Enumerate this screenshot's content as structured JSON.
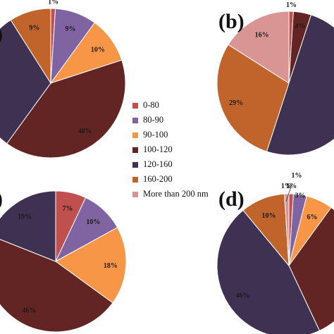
{
  "chart_data": [
    {
      "panel": "(a)",
      "type": "pie",
      "series": [
        {
          "name": "0-80",
          "value": 1,
          "label": "1%"
        },
        {
          "name": "80-90",
          "value": 9,
          "label": "9%"
        },
        {
          "name": "90-100",
          "value": 10,
          "label": "10%"
        },
        {
          "name": "100-120",
          "value": 40,
          "label": "40%"
        },
        {
          "name": "120-160",
          "value": 31,
          "label": "%"
        },
        {
          "name": "160-200",
          "value": 9,
          "label": "9%"
        }
      ]
    },
    {
      "panel": "(b)",
      "type": "pie",
      "series": [
        {
          "name": "0-80",
          "value": 1,
          "label": "1%"
        },
        {
          "name": "100-120",
          "value": 4,
          "label": "4%"
        },
        {
          "name": "120-160",
          "value": 50,
          "label": "5"
        },
        {
          "name": "160-200",
          "value": 29,
          "label": "29%"
        },
        {
          "name": "More than 200 nm",
          "value": 16,
          "label": "16%"
        }
      ]
    },
    {
      "panel": "(c)",
      "type": "pie",
      "series": [
        {
          "name": "0-80",
          "value": 7,
          "label": "7%"
        },
        {
          "name": "80-90",
          "value": 10,
          "label": "10%"
        },
        {
          "name": "90-100",
          "value": 18,
          "label": "18%"
        },
        {
          "name": "100-120",
          "value": 46,
          "label": "46%"
        },
        {
          "name": "120-160",
          "value": 19,
          "label": "19%"
        }
      ]
    },
    {
      "panel": "(d)",
      "type": "pie",
      "series": [
        {
          "name": "0-80",
          "value": 1,
          "label": "1%"
        },
        {
          "name": "80-90",
          "value": 3,
          "label": "3%"
        },
        {
          "name": "90-100",
          "value": 6,
          "label": "6%"
        },
        {
          "name": "100-120",
          "value": 33,
          "label": ""
        },
        {
          "name": "120-160",
          "value": 46,
          "label": "46%"
        },
        {
          "name": "160-200",
          "value": 10,
          "label": "10%"
        },
        {
          "name": "More than 200 nm",
          "value": 1,
          "label": "1%"
        }
      ]
    }
  ],
  "legend": [
    {
      "label": "0-80",
      "color": "#c0504d"
    },
    {
      "label": "80-90",
      "color": "#8064a2"
    },
    {
      "label": "90-100",
      "color": "#f79646"
    },
    {
      "label": "100-120",
      "color": "#632523"
    },
    {
      "label": "120-160",
      "color": "#3f3151"
    },
    {
      "label": "160-200",
      "color": "#c0642b"
    },
    {
      "label": "More than 200 nm",
      "color": "#d99594"
    }
  ],
  "panel_labels": {
    "a": ")",
    "b": "(b)",
    "c": ")",
    "d": "(d)"
  },
  "extra_labels": {
    "d_top": "1%"
  }
}
